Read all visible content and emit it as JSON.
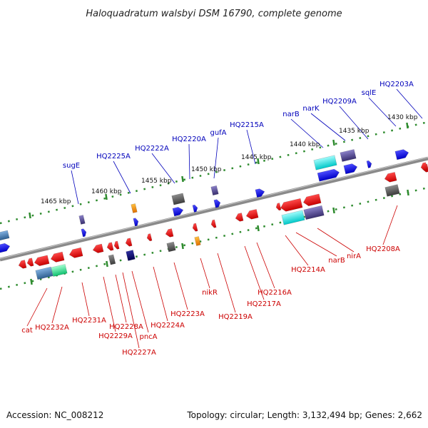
{
  "title": "Haloquadratum walsbyi DSM 16790, complete genome",
  "footer": {
    "accession": "Accession: NC_008212",
    "topology": "Topology: circular; Length: 3,132,494 bp; Genes: 2,662"
  },
  "colors": {
    "backbone": "#8a8a8a",
    "tick": "#2e8b2e",
    "forward_label": "#0000bb",
    "reverse_label": "#cc0000",
    "forward_cds": "#1010ee",
    "reverse_cds": "#ee1111",
    "cyan": "#22e0e0",
    "purple": "#5a4e9a",
    "gray": "#555555",
    "orange": "#ff8c00",
    "steelblue": "#4682b4",
    "green": "#22dd88",
    "navy": "#000080"
  },
  "tick_labels": [
    "1465 kbp",
    "1460 kbp",
    "1455 kbp",
    "1450 kbp",
    "1445 kbp",
    "1440 kbp",
    "1435 kbp",
    "1430 kbp"
  ],
  "forward_labels": [
    "sugE",
    "HQ2225A",
    "HQ2222A",
    "HQ2220A",
    "gufA",
    "HQ2215A",
    "narB",
    "narK",
    "HQ2209A",
    "sqlE",
    "HQ2203A"
  ],
  "reverse_labels": [
    "cat",
    "HQ2232A",
    "HQ2231A",
    "HQ2229A",
    "HQ2228A",
    "HQ2227A",
    "pncA",
    "HQ2224A",
    "HQ2223A",
    "nikR",
    "HQ2219A",
    "HQ2217A",
    "HQ2216A",
    "HQ2214A",
    "narB",
    "nirA",
    "HQ2208A"
  ]
}
